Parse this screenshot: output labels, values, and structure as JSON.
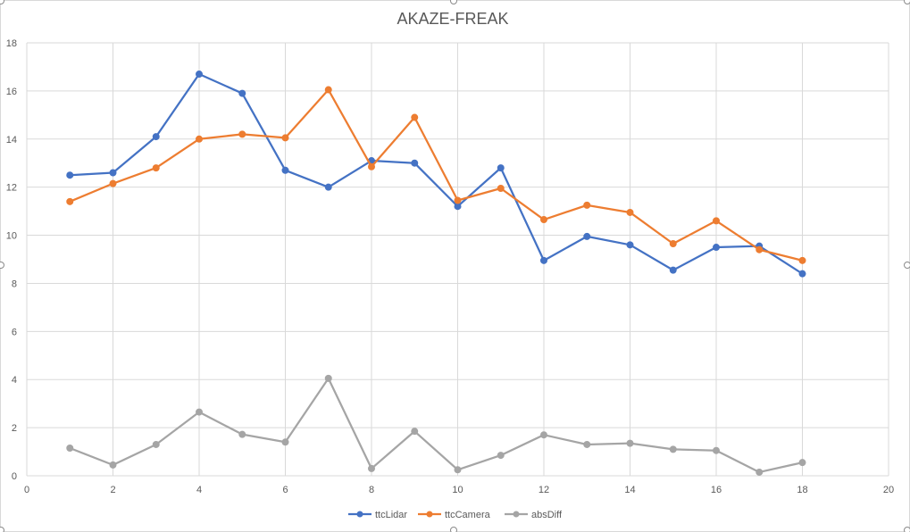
{
  "chart_data": {
    "type": "line",
    "title": "AKAZE-FREAK",
    "xlabel": "",
    "ylabel": "",
    "xlim": [
      0,
      20
    ],
    "ylim": [
      0,
      18
    ],
    "x_ticks": [
      0,
      2,
      4,
      6,
      8,
      10,
      12,
      14,
      16,
      18,
      20
    ],
    "y_ticks": [
      0,
      2,
      4,
      6,
      8,
      10,
      12,
      14,
      16,
      18
    ],
    "grid": true,
    "legend_position": "bottom",
    "x": [
      1,
      2,
      3,
      4,
      5,
      6,
      7,
      8,
      9,
      10,
      11,
      12,
      13,
      14,
      15,
      16,
      17,
      18
    ],
    "series": [
      {
        "name": "ttcLidar",
        "color": "#4472c4",
        "values": [
          12.5,
          12.6,
          14.1,
          16.7,
          15.9,
          12.7,
          12.0,
          13.1,
          13.0,
          11.2,
          12.8,
          8.95,
          9.95,
          9.6,
          8.55,
          9.5,
          9.55,
          8.4
        ]
      },
      {
        "name": "ttcCamera",
        "color": "#ed7d31",
        "values": [
          11.4,
          12.15,
          12.8,
          14.0,
          14.2,
          14.05,
          16.05,
          12.85,
          14.9,
          11.45,
          11.95,
          10.65,
          11.25,
          10.95,
          9.65,
          10.6,
          9.4,
          8.95
        ]
      },
      {
        "name": "absDiff",
        "color": "#a5a5a5",
        "values": [
          1.15,
          0.45,
          1.3,
          2.65,
          1.72,
          1.4,
          4.05,
          0.3,
          1.85,
          0.25,
          0.85,
          1.7,
          1.3,
          1.35,
          1.1,
          1.05,
          0.15,
          0.55
        ]
      }
    ]
  }
}
